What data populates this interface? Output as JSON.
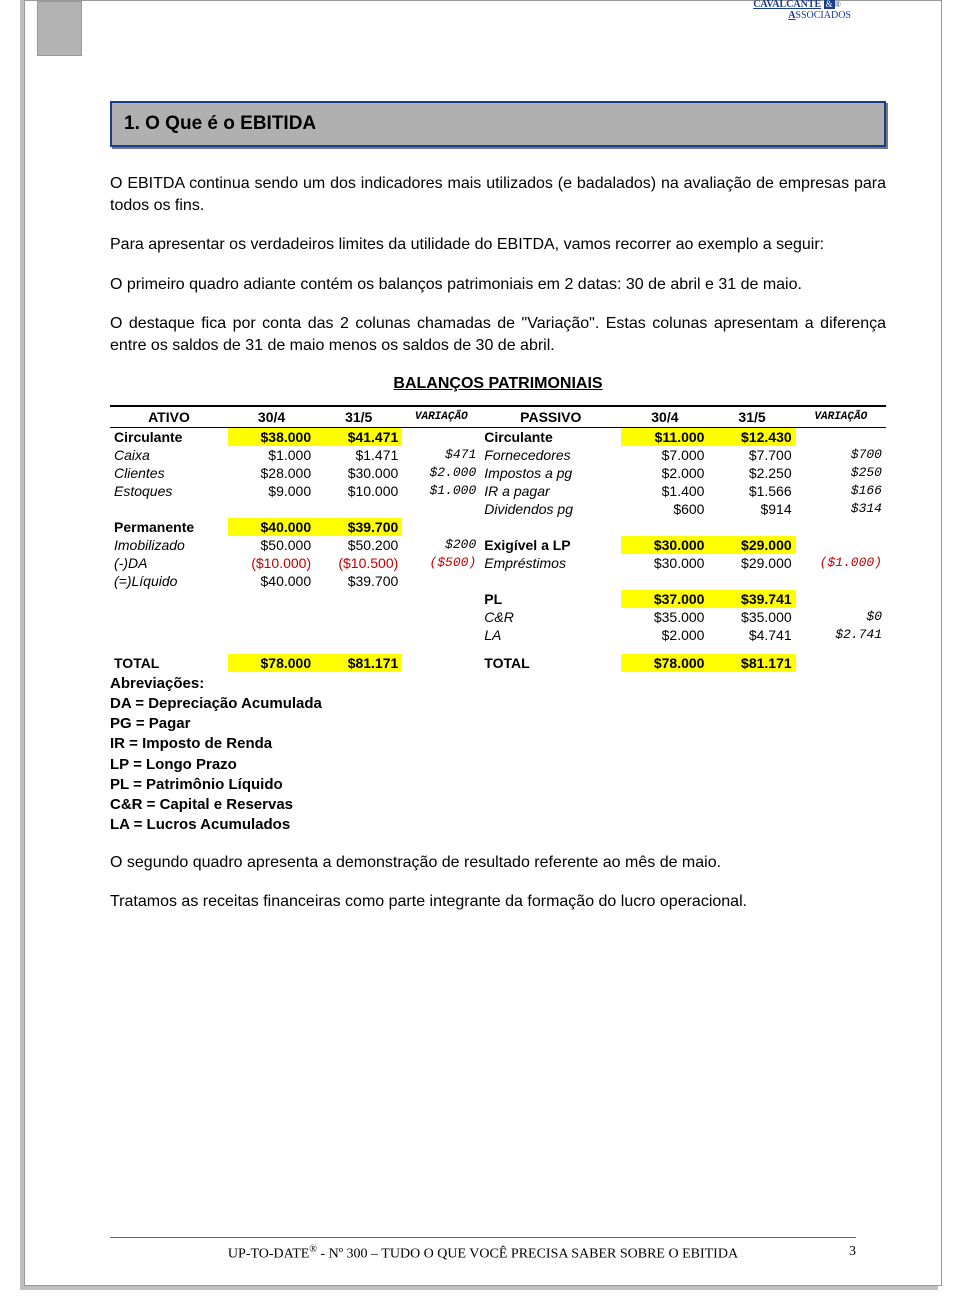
{
  "brand": {
    "part1": "CAVALCANTE",
    "amp": "&",
    "part2": "SSOCIADOS",
    "a": "A"
  },
  "heading": "1. O Que é o EBITIDA",
  "intro": [
    "O EBITDA continua sendo um dos indicadores mais utilizados (e badalados) na avaliação de empresas para todos os fins.",
    "Para apresentar os verdadeiros limites da utilidade do EBITDA, vamos recorrer ao exemplo a seguir:",
    "O primeiro quadro adiante contém os balanços patrimoniais em 2 datas: 30 de abril e 31 de maio.",
    "O destaque fica por conta das 2 colunas chamadas de \"Variação\". Estas colunas apresentam a diferença entre os saldos de 31 de maio menos os saldos de 30 de abril."
  ],
  "table_title": "BALANÇOS PATRIMONIAIS",
  "head": {
    "ativo": "ATIVO",
    "d1": "30/4",
    "d2": "31/5",
    "var": "VARIAÇÃO",
    "passivo": "PASSIVO"
  },
  "rows": [
    {
      "a": "Circulante",
      "a1": "$38.000",
      "a2": "$41.471",
      "av": "",
      "p": "Circulante",
      "p1": "$11.000",
      "p2": "$12.430",
      "pv": "",
      "ahl": true,
      "phl": true,
      "ab": true,
      "pb": true,
      "pit": false
    },
    {
      "a": "Caixa",
      "a1": "$1.000",
      "a2": "$1.471",
      "av": "$471",
      "p": "Fornecedores",
      "p1": "$7.000",
      "p2": "$7.700",
      "pv": "$700",
      "ai": true
    },
    {
      "a": "Clientes",
      "a1": "$28.000",
      "a2": "$30.000",
      "av": "$2.000",
      "p": "Impostos a pg",
      "p1": "$2.000",
      "p2": "$2.250",
      "pv": "$250",
      "ai": true
    },
    {
      "a": "Estoques",
      "a1": "$9.000",
      "a2": "$10.000",
      "av": "$1.000",
      "p": "IR a pagar",
      "p1": "$1.400",
      "p2": "$1.566",
      "pv": "$166",
      "ai": true
    },
    {
      "a": "",
      "a1": "",
      "a2": "",
      "av": "",
      "p": "Dividendos pg",
      "p1": "$600",
      "p2": "$914",
      "pv": "$314"
    },
    {
      "a": "Permanente",
      "a1": "$40.000",
      "a2": "$39.700",
      "av": "",
      "p": "",
      "p1": "",
      "p2": "",
      "pv": "",
      "ahl": true,
      "ab": true
    },
    {
      "a": "Imobilizado",
      "a1": "$50.000",
      "a2": "$50.200",
      "av": "$200",
      "p": "Exigível a LP",
      "p1": "$30.000",
      "p2": "$29.000",
      "pv": "",
      "phl": true,
      "ai": true,
      "pb": true,
      "pit": false
    },
    {
      "a": "(-)DA",
      "a1": "($10.000)",
      "a2": "($10.500)",
      "av": "($500)",
      "p": "Empréstimos",
      "p1": "$30.000",
      "p2": "$29.000",
      "pv": "($1.000)",
      "ared": true,
      "avred": true,
      "pvred": true,
      "ai": true
    },
    {
      "a": "(=)Líquido",
      "a1": "$40.000",
      "a2": "$39.700",
      "av": "",
      "p": "",
      "p1": "",
      "p2": "",
      "pv": "",
      "ai": true
    },
    {
      "a": "",
      "a1": "",
      "a2": "",
      "av": "",
      "p": "PL",
      "p1": "$37.000",
      "p2": "$39.741",
      "pv": "",
      "phl": true,
      "pb": true,
      "pit": false
    },
    {
      "a": "",
      "a1": "",
      "a2": "",
      "av": "",
      "p": "C&R",
      "p1": "$35.000",
      "p2": "$35.000",
      "pv": "$0"
    },
    {
      "a": "",
      "a1": "",
      "a2": "",
      "av": "",
      "p": "LA",
      "p1": "$2.000",
      "p2": "$4.741",
      "pv": "$2.741"
    }
  ],
  "total": {
    "a": "TOTAL",
    "a1": "$78.000",
    "a2": "$81.171",
    "p": "TOTAL",
    "p1": "$78.000",
    "p2": "$81.171"
  },
  "abbrevs_label": "Abreviações:",
  "abbrevs": [
    "DA = Depreciação Acumulada",
    "PG = Pagar",
    "IR = Imposto de Renda",
    "LP = Longo Prazo",
    "PL = Patrimônio Líquido",
    "C&R = Capital e Reservas",
    "LA = Lucros Acumulados"
  ],
  "closing": [
    "O segundo quadro apresenta a demonstração de resultado referente ao mês de maio.",
    "Tratamos as receitas financeiras como parte integrante da formação do lucro operacional."
  ],
  "footer": {
    "pre": "UP-TO-DATE",
    "reg": "®",
    "mid": " - Nº 300 – ",
    "title": "TUDO O QUE VOCÊ PRECISA SABER SOBRE O EBITIDA",
    "page": "3"
  }
}
